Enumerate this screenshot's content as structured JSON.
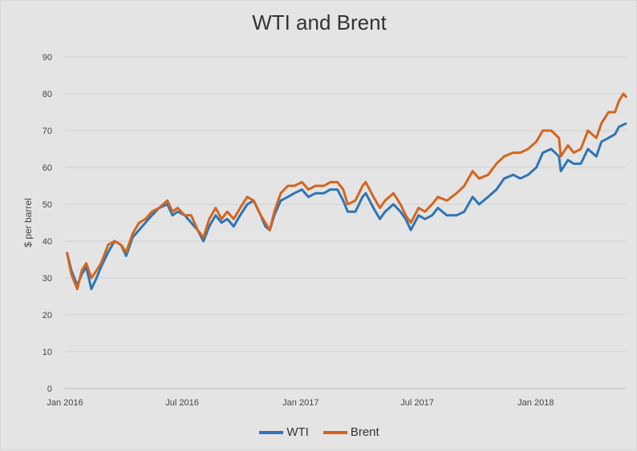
{
  "chart_data": {
    "type": "line",
    "title": "WTI and Brent",
    "xlabel": "",
    "ylabel": "$ per barrel",
    "ylim": [
      0,
      90
    ],
    "yticks": [
      "0",
      "10",
      "20",
      "30",
      "40",
      "50",
      "60",
      "70",
      "80",
      "90"
    ],
    "x_tick_labels": [
      {
        "date": "2016-01-01",
        "label": "Jan 2016"
      },
      {
        "date": "2016-07-01",
        "label": "Jul 2016"
      },
      {
        "date": "2017-01-01",
        "label": "Jan 2017"
      },
      {
        "date": "2017-07-01",
        "label": "Jul 2017"
      },
      {
        "date": "2018-01-01",
        "label": "Jan 2018"
      }
    ],
    "xlim": [
      "2016-01-01",
      "2018-05-22"
    ],
    "grid": "horizontal",
    "legend_position": "bottom",
    "series": [
      {
        "name": "WTI",
        "color": "#2e75b6",
        "points": [
          [
            "2016-01-04",
            37
          ],
          [
            "2016-01-11",
            32
          ],
          [
            "2016-01-20",
            28
          ],
          [
            "2016-01-27",
            31
          ],
          [
            "2016-02-03",
            33
          ],
          [
            "2016-02-11",
            27
          ],
          [
            "2016-02-19",
            30
          ],
          [
            "2016-02-26",
            33
          ],
          [
            "2016-03-08",
            37
          ],
          [
            "2016-03-18",
            40
          ],
          [
            "2016-03-28",
            39
          ],
          [
            "2016-04-05",
            36
          ],
          [
            "2016-04-15",
            41
          ],
          [
            "2016-04-25",
            43
          ],
          [
            "2016-05-05",
            45
          ],
          [
            "2016-05-15",
            47
          ],
          [
            "2016-05-26",
            49
          ],
          [
            "2016-06-08",
            50
          ],
          [
            "2016-06-16",
            47
          ],
          [
            "2016-06-24",
            48
          ],
          [
            "2016-07-05",
            47
          ],
          [
            "2016-07-15",
            45
          ],
          [
            "2016-07-25",
            43
          ],
          [
            "2016-08-03",
            40
          ],
          [
            "2016-08-12",
            44
          ],
          [
            "2016-08-22",
            47
          ],
          [
            "2016-08-31",
            45
          ],
          [
            "2016-09-09",
            46
          ],
          [
            "2016-09-19",
            44
          ],
          [
            "2016-09-29",
            47
          ],
          [
            "2016-10-10",
            50
          ],
          [
            "2016-10-20",
            51
          ],
          [
            "2016-10-31",
            47
          ],
          [
            "2016-11-07",
            44
          ],
          [
            "2016-11-14",
            43
          ],
          [
            "2016-11-21",
            47
          ],
          [
            "2016-12-01",
            51
          ],
          [
            "2016-12-12",
            52
          ],
          [
            "2016-12-22",
            53
          ],
          [
            "2017-01-03",
            54
          ],
          [
            "2017-01-13",
            52
          ],
          [
            "2017-01-24",
            53
          ],
          [
            "2017-02-06",
            53
          ],
          [
            "2017-02-16",
            54
          ],
          [
            "2017-02-27",
            54
          ],
          [
            "2017-03-08",
            51
          ],
          [
            "2017-03-15",
            48
          ],
          [
            "2017-03-27",
            48
          ],
          [
            "2017-04-07",
            52
          ],
          [
            "2017-04-12",
            53
          ],
          [
            "2017-04-24",
            49
          ],
          [
            "2017-05-04",
            46
          ],
          [
            "2017-05-12",
            48
          ],
          [
            "2017-05-25",
            50
          ],
          [
            "2017-06-05",
            48
          ],
          [
            "2017-06-13",
            46
          ],
          [
            "2017-06-21",
            43
          ],
          [
            "2017-07-03",
            47
          ],
          [
            "2017-07-13",
            46
          ],
          [
            "2017-07-24",
            47
          ],
          [
            "2017-08-02",
            49
          ],
          [
            "2017-08-16",
            47
          ],
          [
            "2017-08-31",
            47
          ],
          [
            "2017-09-12",
            48
          ],
          [
            "2017-09-25",
            52
          ],
          [
            "2017-10-05",
            50
          ],
          [
            "2017-10-19",
            52
          ],
          [
            "2017-11-01",
            54
          ],
          [
            "2017-11-13",
            57
          ],
          [
            "2017-11-27",
            58
          ],
          [
            "2017-12-08",
            57
          ],
          [
            "2017-12-20",
            58
          ],
          [
            "2018-01-02",
            60
          ],
          [
            "2018-01-12",
            64
          ],
          [
            "2018-01-25",
            65
          ],
          [
            "2018-02-06",
            63
          ],
          [
            "2018-02-09",
            59
          ],
          [
            "2018-02-20",
            62
          ],
          [
            "2018-03-01",
            61
          ],
          [
            "2018-03-12",
            61
          ],
          [
            "2018-03-23",
            65
          ],
          [
            "2018-04-05",
            63
          ],
          [
            "2018-04-13",
            67
          ],
          [
            "2018-04-24",
            68
          ],
          [
            "2018-05-04",
            69
          ],
          [
            "2018-05-10",
            71
          ],
          [
            "2018-05-22",
            72
          ]
        ]
      },
      {
        "name": "Brent",
        "color": "#d4651f",
        "points": [
          [
            "2016-01-04",
            37
          ],
          [
            "2016-01-11",
            31
          ],
          [
            "2016-01-20",
            27
          ],
          [
            "2016-01-27",
            32
          ],
          [
            "2016-02-03",
            34
          ],
          [
            "2016-02-11",
            30
          ],
          [
            "2016-02-19",
            32
          ],
          [
            "2016-02-26",
            34
          ],
          [
            "2016-03-08",
            39
          ],
          [
            "2016-03-18",
            40
          ],
          [
            "2016-03-28",
            39
          ],
          [
            "2016-04-05",
            37
          ],
          [
            "2016-04-15",
            42
          ],
          [
            "2016-04-25",
            45
          ],
          [
            "2016-05-05",
            46
          ],
          [
            "2016-05-15",
            48
          ],
          [
            "2016-05-26",
            49
          ],
          [
            "2016-06-08",
            51
          ],
          [
            "2016-06-16",
            48
          ],
          [
            "2016-06-24",
            49
          ],
          [
            "2016-07-05",
            47
          ],
          [
            "2016-07-15",
            47
          ],
          [
            "2016-07-25",
            43
          ],
          [
            "2016-08-03",
            41
          ],
          [
            "2016-08-12",
            46
          ],
          [
            "2016-08-22",
            49
          ],
          [
            "2016-08-31",
            46
          ],
          [
            "2016-09-09",
            48
          ],
          [
            "2016-09-19",
            46
          ],
          [
            "2016-09-29",
            49
          ],
          [
            "2016-10-10",
            52
          ],
          [
            "2016-10-20",
            51
          ],
          [
            "2016-10-31",
            47
          ],
          [
            "2016-11-07",
            45
          ],
          [
            "2016-11-14",
            43
          ],
          [
            "2016-11-21",
            48
          ],
          [
            "2016-12-01",
            53
          ],
          [
            "2016-12-12",
            55
          ],
          [
            "2016-12-22",
            55
          ],
          [
            "2017-01-03",
            56
          ],
          [
            "2017-01-13",
            54
          ],
          [
            "2017-01-24",
            55
          ],
          [
            "2017-02-06",
            55
          ],
          [
            "2017-02-16",
            56
          ],
          [
            "2017-02-27",
            56
          ],
          [
            "2017-03-08",
            54
          ],
          [
            "2017-03-15",
            50
          ],
          [
            "2017-03-27",
            51
          ],
          [
            "2017-04-07",
            55
          ],
          [
            "2017-04-12",
            56
          ],
          [
            "2017-04-24",
            52
          ],
          [
            "2017-05-04",
            49
          ],
          [
            "2017-05-12",
            51
          ],
          [
            "2017-05-25",
            53
          ],
          [
            "2017-06-05",
            50
          ],
          [
            "2017-06-13",
            47
          ],
          [
            "2017-06-21",
            45
          ],
          [
            "2017-07-03",
            49
          ],
          [
            "2017-07-13",
            48
          ],
          [
            "2017-07-24",
            50
          ],
          [
            "2017-08-02",
            52
          ],
          [
            "2017-08-16",
            51
          ],
          [
            "2017-08-31",
            53
          ],
          [
            "2017-09-12",
            55
          ],
          [
            "2017-09-25",
            59
          ],
          [
            "2017-10-05",
            57
          ],
          [
            "2017-10-19",
            58
          ],
          [
            "2017-11-01",
            61
          ],
          [
            "2017-11-13",
            63
          ],
          [
            "2017-11-27",
            64
          ],
          [
            "2017-12-08",
            64
          ],
          [
            "2017-12-20",
            65
          ],
          [
            "2018-01-02",
            67
          ],
          [
            "2018-01-12",
            70
          ],
          [
            "2018-01-25",
            70
          ],
          [
            "2018-02-06",
            68
          ],
          [
            "2018-02-09",
            63
          ],
          [
            "2018-02-20",
            66
          ],
          [
            "2018-03-01",
            64
          ],
          [
            "2018-03-12",
            65
          ],
          [
            "2018-03-23",
            70
          ],
          [
            "2018-04-05",
            68
          ],
          [
            "2018-04-13",
            72
          ],
          [
            "2018-04-24",
            75
          ],
          [
            "2018-05-04",
            75
          ],
          [
            "2018-05-10",
            78
          ],
          [
            "2018-05-17",
            80
          ],
          [
            "2018-05-22",
            79
          ]
        ]
      }
    ]
  }
}
